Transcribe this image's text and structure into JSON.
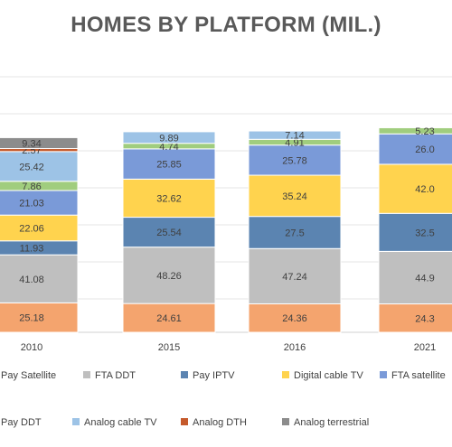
{
  "chart_data": {
    "type": "bar",
    "stacked": true,
    "title": "HOMES BY PLATFORM (MIL.)",
    "categories": [
      "2010",
      "2015",
      "2016",
      "2021"
    ],
    "series": [
      {
        "name": "Pay DDT",
        "color": "#F4A46E",
        "values": [
          25.18,
          24.61,
          24.36,
          24.3
        ]
      },
      {
        "name": "FTA DDT",
        "color": "#BFBFBF",
        "values": [
          41.08,
          48.26,
          47.24,
          44.9
        ]
      },
      {
        "name": "Pay IPTV",
        "color": "#5B84B1",
        "values": [
          11.93,
          25.54,
          27.5,
          32.5
        ]
      },
      {
        "name": "Digital cable TV",
        "color": "#FFD34E",
        "values": [
          22.06,
          32.62,
          35.24,
          42.0
        ]
      },
      {
        "name": "FTA satellite",
        "color": "#7A9AD8",
        "values": [
          21.03,
          25.85,
          25.78,
          26.0
        ]
      },
      {
        "name": "Pay Satellite",
        "color": "#A0CD7E",
        "values": [
          7.86,
          4.74,
          4.91,
          5.23
        ]
      },
      {
        "name": "Analog cable TV",
        "color": "#9DC3E6",
        "values": [
          25.42,
          9.89,
          7.14,
          0
        ]
      },
      {
        "name": "Analog DTH",
        "color": "#C55A2C",
        "values": [
          2.57,
          0,
          0,
          0
        ]
      },
      {
        "name": "Analog terrestrial",
        "color": "#8C8C8C",
        "values": [
          9.34,
          0,
          0,
          0
        ]
      }
    ],
    "labels": [
      [
        "25.18",
        "41.08",
        "11.93",
        "22.06",
        "21.03",
        "7.86",
        "25.42",
        "2.57",
        "9.34"
      ],
      [
        "24.61",
        "48.26",
        "25.54",
        "32.62",
        "25.85",
        "4.74",
        "9.89",
        "",
        ""
      ],
      [
        "24.36",
        "47.24",
        "27.5",
        "35.24",
        "25.78",
        "4.91",
        "7.14",
        "",
        ""
      ],
      [
        "24.3",
        "44.9",
        "32.5",
        "42.0",
        "26.0",
        "5.23",
        "",
        "",
        ""
      ]
    ],
    "legend": {
      "position": "bottom",
      "row1": [
        "Pay Satellite",
        "FTA DDT",
        "Pay IPTV",
        "Digital cable TV",
        "FTA satellite"
      ],
      "row2": [
        "Pay DDT",
        "Analog cable TV",
        "Analog DTH",
        "Analog terrestrial"
      ]
    },
    "gridlines": true
  }
}
